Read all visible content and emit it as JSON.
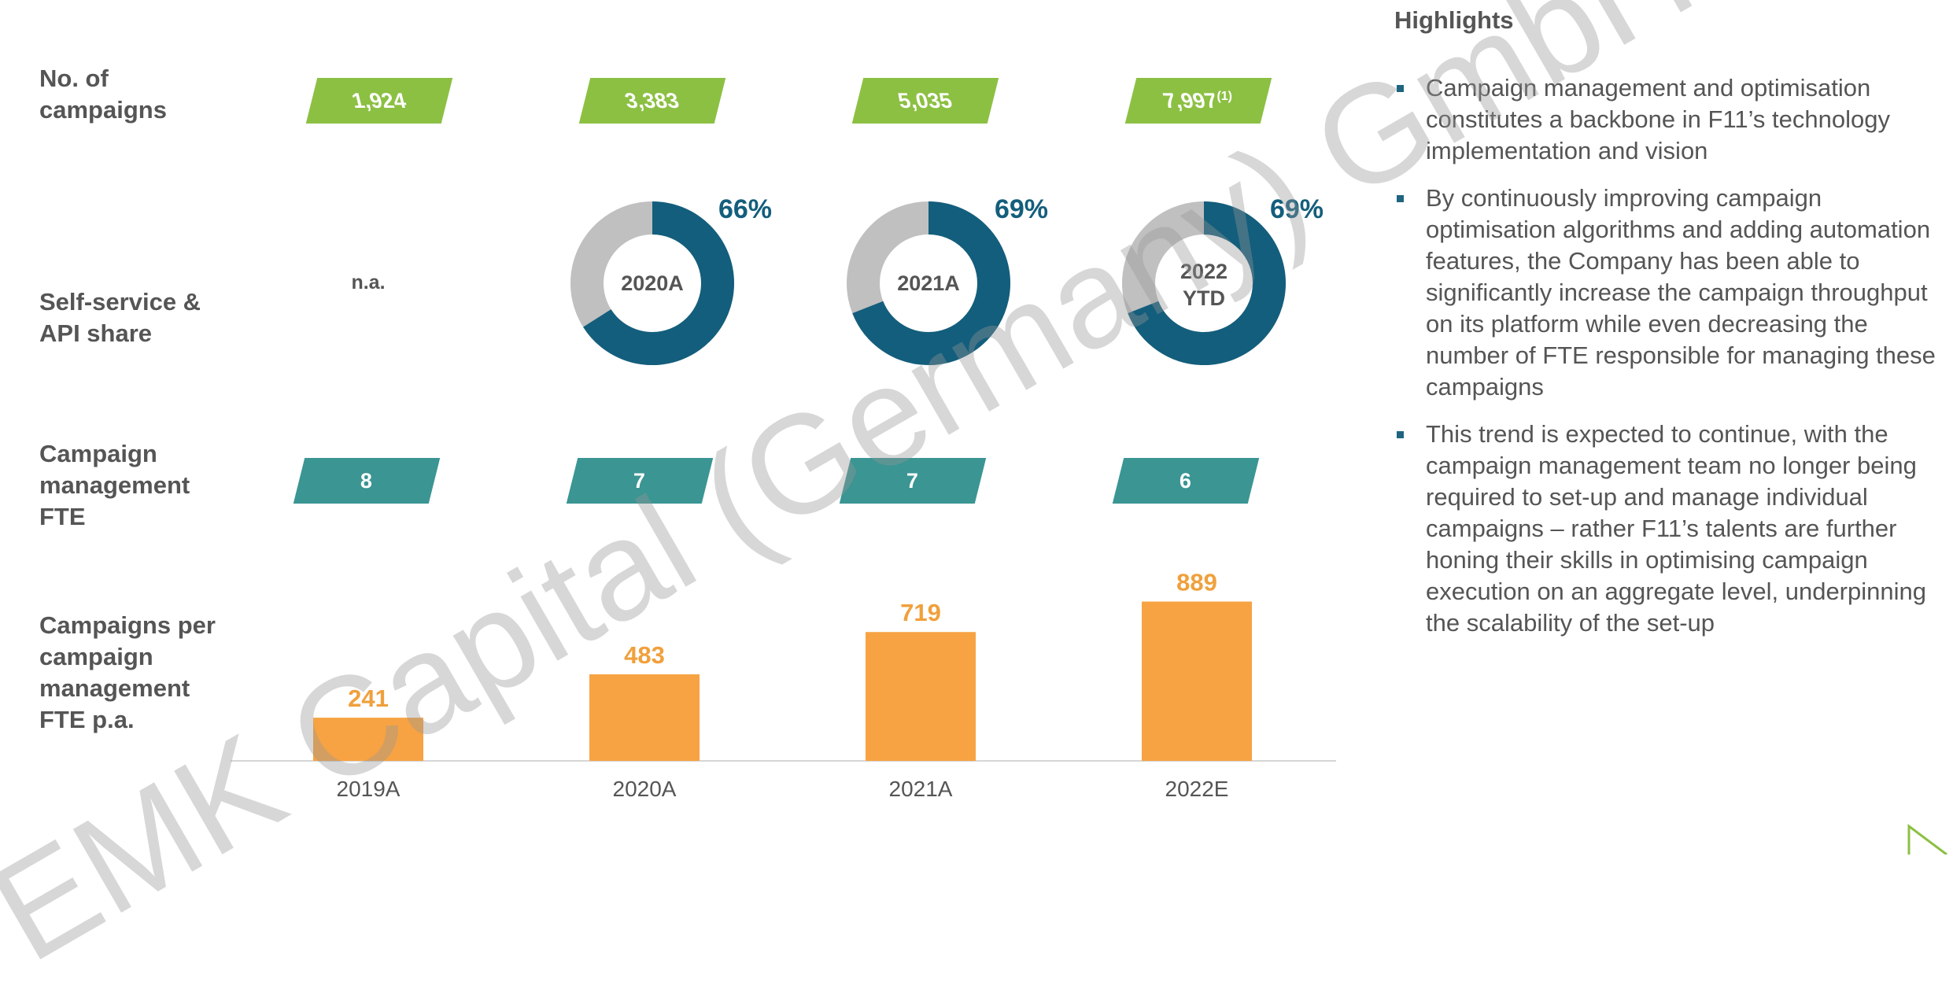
{
  "row_labels": {
    "campaigns": "No. of campaigns",
    "self_service": "Self-service & API share",
    "fte": "Campaign management FTE",
    "per_fte": "Campaigns per campaign management FTE p.a."
  },
  "campaigns": [
    {
      "value": "1,924",
      "note": ""
    },
    {
      "value": "3,383",
      "note": ""
    },
    {
      "value": "5,035",
      "note": ""
    },
    {
      "value": "7,997",
      "note": "(1)"
    }
  ],
  "self_service": [
    {
      "center_label": "n.a.",
      "share": null,
      "share_label": ""
    },
    {
      "center_label": "2020A",
      "share": 66,
      "share_label": "66%"
    },
    {
      "center_label": "2021A",
      "share": 69,
      "share_label": "69%"
    },
    {
      "center_label": "2022 YTD",
      "share": 69,
      "share_label": "69%"
    }
  ],
  "fte": [
    "8",
    "7",
    "7",
    "6"
  ],
  "chart_data": {
    "type": "bar",
    "title": "",
    "xlabel": "",
    "ylabel": "Campaigns per campaign management FTE p.a.",
    "categories": [
      "2019A",
      "2020A",
      "2021A",
      "2022E"
    ],
    "values": [
      241,
      483,
      719,
      889
    ],
    "data_labels": [
      "241",
      "483",
      "719",
      "889"
    ],
    "ylim": [
      0,
      900
    ],
    "grid": false,
    "bar_color": "#f7a343",
    "label_color": "#f0a03c"
  },
  "highlights": {
    "title": "Highlights",
    "bullets": [
      "Campaign management and optimisation constitutes a backbone in F11’s technology implementation and vision",
      "By continuously improving campaign optimisation algorithms and adding automation features, the Company has been able to significantly increase the campaign throughput on its platform while even decreasing the number of FTE responsible for managing these campaigns",
      "This trend is expected to continue, with the campaign management team no longer being required to set-up and manage individual campaigns – rather F11’s talents are further honing their skills in optimising campaign execution on an aggregate level, underpinning the scalability of the set-up"
    ]
  },
  "watermark": "EMK Capital (Germany) GmbH",
  "colors": {
    "green": "#8cc043",
    "teal": "#3a9593",
    "donut_blue": "#135e7c",
    "donut_grey": "#c0c0c0",
    "bar_orange": "#f7a343",
    "text_grey": "#555555",
    "bullet_blue": "#1f6580"
  }
}
